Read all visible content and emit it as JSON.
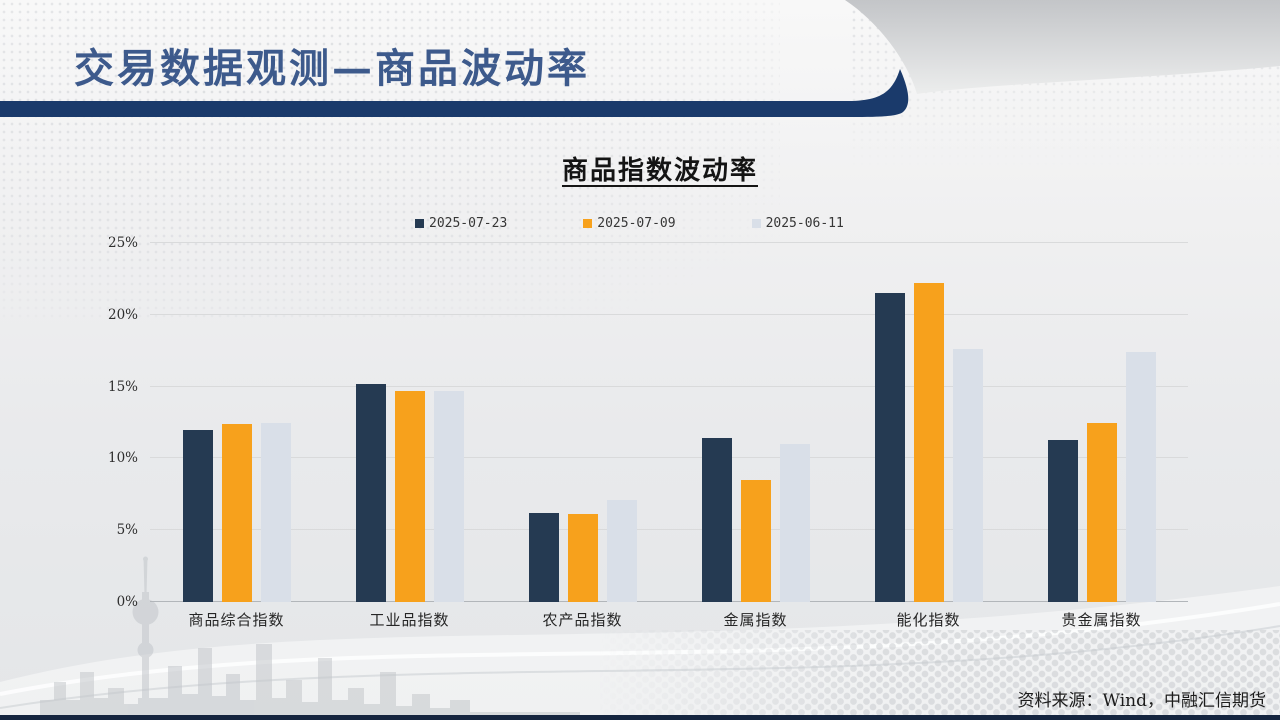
{
  "slide": {
    "title": "交易数据观测—商品波动率",
    "source_note": "资料来源：Wind，中融汇信期货"
  },
  "chart_data": {
    "type": "bar",
    "title": "商品指数波动率",
    "categories": [
      "商品综合指数",
      "工业品指数",
      "农产品指数",
      "金属指数",
      "能化指数",
      "贵金属指数"
    ],
    "series": [
      {
        "name": "2025-07-23",
        "color": "#253A52",
        "values": [
          12.0,
          15.2,
          6.2,
          11.4,
          21.5,
          11.3
        ]
      },
      {
        "name": "2025-07-09",
        "color": "#F7A11C",
        "values": [
          12.4,
          14.7,
          6.1,
          8.5,
          22.2,
          12.5
        ]
      },
      {
        "name": "2025-06-11",
        "color": "#D9DFE8",
        "values": [
          12.5,
          14.7,
          7.1,
          11.0,
          17.6,
          17.4
        ]
      }
    ],
    "xlabel": "",
    "ylabel": "",
    "unit": "%",
    "ylim": [
      0,
      25
    ],
    "y_ticks": [
      "0%",
      "5%",
      "10%",
      "15%",
      "20%",
      "25%"
    ],
    "grid": true,
    "legend_position": "top-center"
  },
  "colors": {
    "series_navy": "#253A52",
    "series_orange": "#F7A11C",
    "series_light": "#D9DFE8",
    "header_bar": "#1A3A6B",
    "title_text": "#3D5A8C",
    "gridline": "#D9DADB",
    "axis_line": "#B2B6BA",
    "accent_strip": "#15253F"
  }
}
